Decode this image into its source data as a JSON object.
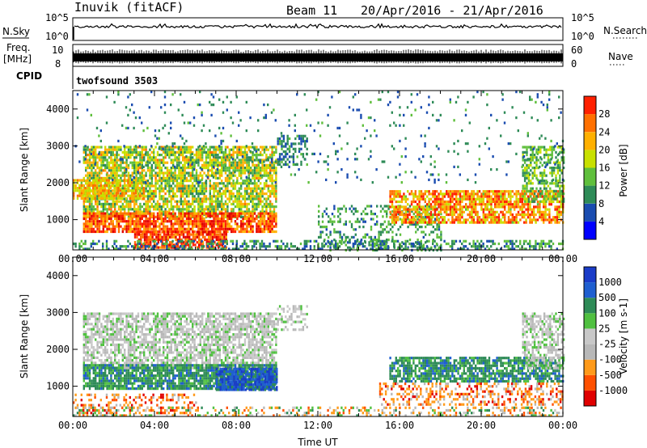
{
  "header": {
    "station": "Inuvik (fitACF)",
    "beam": "Beam 11",
    "date_range": "20/Apr/2016 - 21/Apr/2016"
  },
  "strip_panels": {
    "nsky": {
      "left_label": "N.Sky",
      "left_ticks": [
        "10^5",
        "10^0"
      ],
      "right_ticks": [
        "10^5",
        "10^0"
      ],
      "right_label": "N.Search"
    },
    "freq": {
      "left_label_top": "Freq.",
      "left_label_unit": "[MHz]",
      "left_ticks": [
        "10",
        "8"
      ],
      "right_ticks": [
        "60",
        "0"
      ],
      "right_label": "Nave"
    },
    "cpid": {
      "label": "CPID",
      "program": "twofsound 3503"
    }
  },
  "colors": {
    "power_scale": [
      "#0000ff",
      "#1a4cb0",
      "#2e8b57",
      "#5fbf3c",
      "#c8e000",
      "#ffb000",
      "#ff7000",
      "#ff2000",
      "#e00000"
    ],
    "velocity_scale": [
      "#e00000",
      "#ff5000",
      "#ff9a1a",
      "#b8b8b8",
      "#c8c8c8",
      "#50c040",
      "#2e8b57",
      "#1f5fd0",
      "#1a3cc8"
    ]
  },
  "chart_data": [
    {
      "type": "heatmap",
      "title": "Power",
      "xlabel": "",
      "ylabel": "Slant Range [km]",
      "xlim": [
        0,
        24
      ],
      "ylim": [
        180,
        4500
      ],
      "x_ticks": [
        "00:00",
        "04:00",
        "08:00",
        "12:00",
        "16:00",
        "20:00",
        "00:00"
      ],
      "y_ticks": [
        1000,
        2000,
        3000,
        4000
      ],
      "colorbar": {
        "label": "Power [dB]",
        "ticks": [
          4,
          8,
          12,
          16,
          20,
          24,
          28
        ],
        "range": [
          0,
          32
        ]
      },
      "regions": [
        {
          "t": [
            0.5,
            10.0
          ],
          "r": [
            1100,
            3000
          ],
          "dB": [
            8,
            22
          ],
          "density": 0.75
        },
        {
          "t": [
            0.5,
            10.0
          ],
          "r": [
            700,
            1200
          ],
          "dB": [
            18,
            30
          ],
          "density": 0.85
        },
        {
          "t": [
            3.0,
            7.5
          ],
          "r": [
            250,
            700
          ],
          "dB": [
            20,
            31
          ],
          "density": 0.8
        },
        {
          "t": [
            0.0,
            3.5
          ],
          "r": [
            1600,
            2100
          ],
          "dB": [
            14,
            24
          ],
          "density": 0.7
        },
        {
          "t": [
            10.0,
            11.5
          ],
          "r": [
            2500,
            3300
          ],
          "dB": [
            5,
            12
          ],
          "density": 0.45
        },
        {
          "t": [
            12.0,
            18.0
          ],
          "r": [
            200,
            1400
          ],
          "dB": [
            6,
            14
          ],
          "density": 0.3
        },
        {
          "t": [
            15.5,
            24.0
          ],
          "r": [
            900,
            1800
          ],
          "dB": [
            14,
            28
          ],
          "density": 0.75
        },
        {
          "t": [
            22.0,
            24.0
          ],
          "r": [
            1500,
            3000
          ],
          "dB": [
            8,
            16
          ],
          "density": 0.55
        },
        {
          "t": [
            0.0,
            24.0
          ],
          "r": [
            200,
            450
          ],
          "dB": [
            4,
            14
          ],
          "density": 0.45
        },
        {
          "t": [
            0.0,
            24.0
          ],
          "r": [
            2000,
            4500
          ],
          "dB": [
            4,
            12
          ],
          "density": 0.05
        }
      ]
    },
    {
      "type": "heatmap",
      "title": "Velocity",
      "xlabel": "Time UT",
      "ylabel": "Slant Range [km]",
      "xlim": [
        0,
        24
      ],
      "ylim": [
        180,
        4500
      ],
      "x_ticks": [
        "00:00",
        "04:00",
        "08:00",
        "12:00",
        "16:00",
        "20:00",
        "00:00"
      ],
      "y_ticks": [
        1000,
        2000,
        3000,
        4000
      ],
      "colorbar": {
        "label": "Velocity [m s-1]",
        "ticks": [
          "1000",
          "500",
          "100",
          "25",
          "-25",
          "-100",
          "-500",
          "-1000"
        ]
      },
      "regions": [
        {
          "t": [
            0.5,
            10.0
          ],
          "r": [
            1500,
            3000
          ],
          "v": "gray",
          "density": 0.7
        },
        {
          "t": [
            0.5,
            10.0
          ],
          "r": [
            900,
            1600
          ],
          "v": "green",
          "density": 0.85
        },
        {
          "t": [
            7.0,
            10.0
          ],
          "r": [
            900,
            1500
          ],
          "v": "blue",
          "density": 0.9
        },
        {
          "t": [
            0.0,
            6.0
          ],
          "r": [
            250,
            800
          ],
          "v": "orange",
          "density": 0.35
        },
        {
          "t": [
            10.0,
            11.5
          ],
          "r": [
            2500,
            3200
          ],
          "v": "gray",
          "density": 0.4
        },
        {
          "t": [
            15.5,
            24.0
          ],
          "r": [
            1100,
            1800
          ],
          "v": "green",
          "density": 0.75
        },
        {
          "t": [
            15.0,
            24.0
          ],
          "r": [
            500,
            1100
          ],
          "v": "orange",
          "density": 0.4
        },
        {
          "t": [
            22.0,
            24.0
          ],
          "r": [
            1500,
            3000
          ],
          "v": "gray",
          "density": 0.55
        },
        {
          "t": [
            0.0,
            24.0
          ],
          "r": [
            200,
            450
          ],
          "v": "mixed",
          "density": 0.35
        }
      ]
    }
  ]
}
